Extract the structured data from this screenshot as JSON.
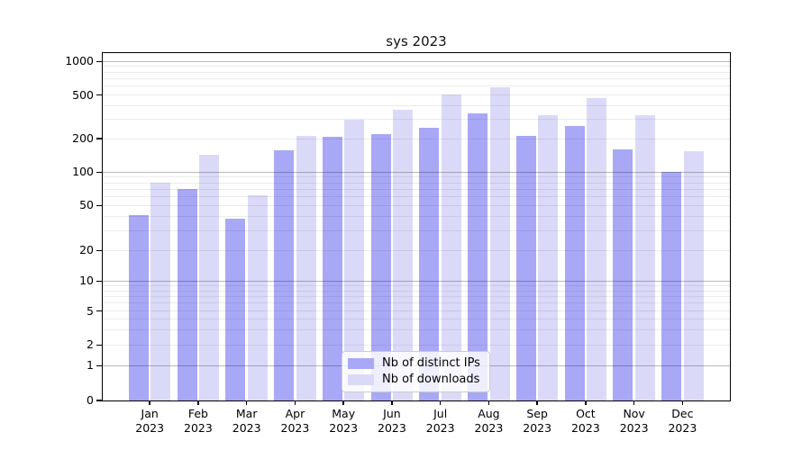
{
  "title": "sys 2023",
  "chart_data": {
    "type": "bar",
    "title": "sys 2023",
    "categories": [
      "Jan 2023",
      "Feb 2023",
      "Mar 2023",
      "Apr 2023",
      "May 2023",
      "Jun 2023",
      "Jul 2023",
      "Aug 2023",
      "Sep 2023",
      "Oct 2023",
      "Nov 2023",
      "Dec 2023"
    ],
    "series": [
      {
        "name": "Nb of distinct IPs",
        "color": "#a8a8f6",
        "values": [
          41,
          70,
          38,
          156,
          207,
          220,
          251,
          340,
          212,
          262,
          160,
          100
        ]
      },
      {
        "name": "Nb of downloads",
        "color": "#dadaf8",
        "values": [
          81,
          143,
          62,
          213,
          297,
          370,
          507,
          585,
          327,
          473,
          325,
          154
        ]
      }
    ],
    "xlabel": "",
    "ylabel": "",
    "yscale": "symlog",
    "y_tick_labels": [
      "1000",
      "500",
      "200",
      "100",
      "50",
      "20",
      "10",
      "5",
      "2",
      "1",
      "0"
    ],
    "ylim": [
      0,
      1200
    ],
    "grid": "on",
    "legend_position": "lower center inside"
  }
}
